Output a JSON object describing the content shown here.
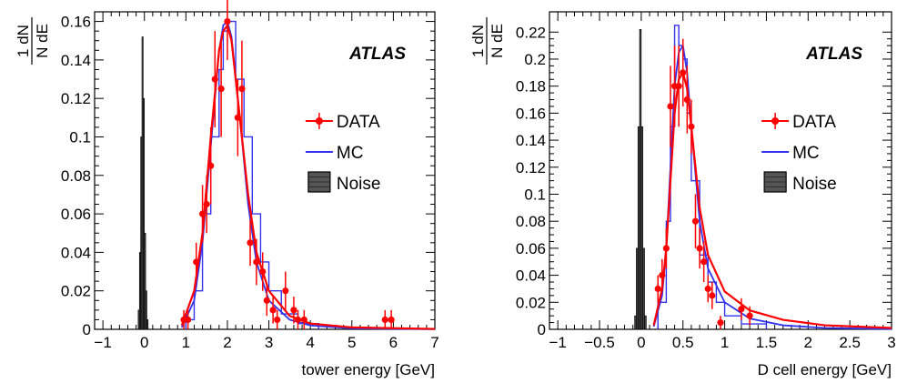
{
  "colors": {
    "data": "#ff0000",
    "mc": "#3333ee",
    "noise": "#000000"
  },
  "chart_data": [
    {
      "type": "line",
      "xlabel": "tower energy [GeV]",
      "ylabel": {
        "num": "1 dN",
        "den": "N dE"
      },
      "xlim": [
        -1.2,
        7
      ],
      "ylim": [
        0,
        0.165
      ],
      "xticks": [
        -1,
        0,
        1,
        2,
        3,
        4,
        5,
        6,
        7
      ],
      "xtick_labels": [
        "−1",
        "0",
        "1",
        "2",
        "3",
        "4",
        "5",
        "6",
        "7"
      ],
      "yticks": [
        0,
        0.02,
        0.04,
        0.06,
        0.08,
        0.1,
        0.12,
        0.14,
        0.16
      ],
      "ytick_labels": [
        "0",
        "0.02",
        "0.04",
        "0.06",
        "0.08",
        "0.1",
        "0.12",
        "0.14",
        "0.16"
      ],
      "annotation": "ATLAS",
      "legend": {
        "position": "right",
        "entries": [
          "DATA",
          "MC",
          "Noise"
        ]
      },
      "data_points": [
        {
          "x": 0.95,
          "y": 0.005,
          "err": 0.005
        },
        {
          "x": 1.05,
          "y": 0.005,
          "err": 0.005
        },
        {
          "x": 1.25,
          "y": 0.035,
          "err": 0.01
        },
        {
          "x": 1.4,
          "y": 0.06,
          "err": 0.015
        },
        {
          "x": 1.5,
          "y": 0.065,
          "err": 0.015
        },
        {
          "x": 1.6,
          "y": 0.085,
          "err": 0.02
        },
        {
          "x": 1.7,
          "y": 0.13,
          "err": 0.025
        },
        {
          "x": 1.85,
          "y": 0.125,
          "err": 0.025
        },
        {
          "x": 2.0,
          "y": 0.16,
          "err": 0.02
        },
        {
          "x": 2.25,
          "y": 0.11,
          "err": 0.02
        },
        {
          "x": 2.35,
          "y": 0.125,
          "err": 0.025
        },
        {
          "x": 2.55,
          "y": 0.045,
          "err": 0.012
        },
        {
          "x": 2.7,
          "y": 0.035,
          "err": 0.012
        },
        {
          "x": 2.85,
          "y": 0.03,
          "err": 0.01
        },
        {
          "x": 2.95,
          "y": 0.015,
          "err": 0.008
        },
        {
          "x": 3.1,
          "y": 0.01,
          "err": 0.007
        },
        {
          "x": 3.2,
          "y": 0.005,
          "err": 0.005
        },
        {
          "x": 3.4,
          "y": 0.02,
          "err": 0.01
        },
        {
          "x": 3.6,
          "y": 0.01,
          "err": 0.007
        },
        {
          "x": 3.7,
          "y": 0.005,
          "err": 0.005
        },
        {
          "x": 3.85,
          "y": 0.005,
          "err": 0.005
        },
        {
          "x": 5.8,
          "y": 0.005,
          "err": 0.005
        },
        {
          "x": 5.95,
          "y": 0.005,
          "err": 0.005
        }
      ],
      "data_fit": {
        "x": [
          0.9,
          1.2,
          1.4,
          1.6,
          1.8,
          1.9,
          2.0,
          2.1,
          2.3,
          2.5,
          2.7,
          3.0,
          3.5,
          4.0,
          5.0,
          7.0
        ],
        "y": [
          0.002,
          0.02,
          0.05,
          0.1,
          0.145,
          0.155,
          0.158,
          0.15,
          0.11,
          0.07,
          0.04,
          0.02,
          0.007,
          0.003,
          0.001,
          0.0002
        ]
      },
      "mc_fit": {
        "x": [
          0.9,
          1.2,
          1.4,
          1.6,
          1.8,
          1.9,
          2.0,
          2.1,
          2.3,
          2.5,
          2.7,
          3.0,
          3.5,
          4.0,
          5.0,
          7.0
        ],
        "y": [
          0.001,
          0.015,
          0.045,
          0.095,
          0.145,
          0.158,
          0.16,
          0.152,
          0.11,
          0.065,
          0.035,
          0.015,
          0.005,
          0.002,
          0.0005,
          0.0001
        ]
      },
      "mc_hist": {
        "edges": [
          1.0,
          1.2,
          1.4,
          1.6,
          1.8,
          1.9,
          2.0,
          2.2,
          2.4,
          2.6,
          2.8,
          3.0,
          3.3,
          3.7,
          4.2
        ],
        "values": [
          0.005,
          0.02,
          0.06,
          0.1,
          0.135,
          0.155,
          0.16,
          0.13,
          0.1,
          0.06,
          0.035,
          0.02,
          0.008,
          0.003
        ]
      },
      "noise_hist": {
        "edges": [
          -0.15,
          -0.12,
          -0.09,
          -0.06,
          -0.03,
          0.0,
          0.03,
          0.06,
          0.09
        ],
        "values": [
          0.01,
          0.04,
          0.1,
          0.152,
          0.12,
          0.05,
          0.02,
          0.005
        ]
      }
    },
    {
      "type": "line",
      "xlabel": "D cell energy [GeV]",
      "ylabel": {
        "num": "1 dN",
        "den": "N dE"
      },
      "xlim": [
        -1.1,
        3
      ],
      "ylim": [
        0,
        0.235
      ],
      "xticks": [
        -1,
        -0.5,
        0,
        0.5,
        1,
        1.5,
        2,
        2.5,
        3
      ],
      "xtick_labels": [
        "−1",
        "−0.5",
        "0",
        "0.5",
        "1",
        "1.5",
        "2",
        "2.5",
        "3"
      ],
      "yticks": [
        0,
        0.02,
        0.04,
        0.06,
        0.08,
        0.1,
        0.12,
        0.14,
        0.16,
        0.18,
        0.2,
        0.22
      ],
      "ytick_labels": [
        "0",
        "0.02",
        "0.04",
        "0.06",
        "0.08",
        "0.1",
        "0.12",
        "0.14",
        "0.16",
        "0.18",
        "0.2",
        "0.22"
      ],
      "annotation": "ATLAS",
      "legend": {
        "position": "right",
        "entries": [
          "DATA",
          "MC",
          "Noise"
        ]
      },
      "data_points": [
        {
          "x": 0.2,
          "y": 0.03,
          "err": 0.01
        },
        {
          "x": 0.25,
          "y": 0.04,
          "err": 0.012
        },
        {
          "x": 0.3,
          "y": 0.06,
          "err": 0.015
        },
        {
          "x": 0.35,
          "y": 0.165,
          "err": 0.03
        },
        {
          "x": 0.4,
          "y": 0.18,
          "err": 0.03
        },
        {
          "x": 0.45,
          "y": 0.18,
          "err": 0.03
        },
        {
          "x": 0.5,
          "y": 0.19,
          "err": 0.025
        },
        {
          "x": 0.55,
          "y": 0.17,
          "err": 0.025
        },
        {
          "x": 0.6,
          "y": 0.15,
          "err": 0.02
        },
        {
          "x": 0.65,
          "y": 0.08,
          "err": 0.02
        },
        {
          "x": 0.7,
          "y": 0.06,
          "err": 0.015
        },
        {
          "x": 0.75,
          "y": 0.05,
          "err": 0.015
        },
        {
          "x": 0.8,
          "y": 0.03,
          "err": 0.01
        },
        {
          "x": 0.85,
          "y": 0.025,
          "err": 0.01
        },
        {
          "x": 0.95,
          "y": 0.005,
          "err": 0.005
        },
        {
          "x": 1.2,
          "y": 0.015,
          "err": 0.008
        },
        {
          "x": 1.3,
          "y": 0.01,
          "err": 0.007
        }
      ],
      "data_fit": {
        "x": [
          0.15,
          0.25,
          0.3,
          0.35,
          0.4,
          0.45,
          0.5,
          0.55,
          0.6,
          0.7,
          0.8,
          1.0,
          1.3,
          1.7,
          2.2,
          3.0
        ],
        "y": [
          0.003,
          0.03,
          0.06,
          0.11,
          0.16,
          0.185,
          0.19,
          0.178,
          0.15,
          0.09,
          0.055,
          0.028,
          0.014,
          0.007,
          0.003,
          0.001
        ]
      },
      "mc_fit": {
        "x": [
          0.15,
          0.25,
          0.3,
          0.35,
          0.4,
          0.45,
          0.5,
          0.55,
          0.6,
          0.7,
          0.8,
          1.0,
          1.3,
          1.7,
          2.2,
          3.0
        ],
        "y": [
          0.002,
          0.025,
          0.06,
          0.12,
          0.18,
          0.205,
          0.21,
          0.19,
          0.15,
          0.08,
          0.045,
          0.02,
          0.008,
          0.003,
          0.001,
          0.0003
        ]
      },
      "mc_hist": {
        "edges": [
          0.2,
          0.3,
          0.35,
          0.4,
          0.45,
          0.5,
          0.55,
          0.6,
          0.7,
          0.8,
          0.9,
          1.0,
          1.2,
          1.5
        ],
        "values": [
          0.02,
          0.08,
          0.15,
          0.225,
          0.21,
          0.2,
          0.16,
          0.11,
          0.055,
          0.035,
          0.02,
          0.01,
          0.004
        ]
      },
      "noise_hist": {
        "edges": [
          -0.08,
          -0.06,
          -0.04,
          -0.02,
          0.0,
          0.02,
          0.04,
          0.06
        ],
        "values": [
          0.01,
          0.06,
          0.15,
          0.222,
          0.15,
          0.06,
          0.01
        ]
      }
    }
  ]
}
